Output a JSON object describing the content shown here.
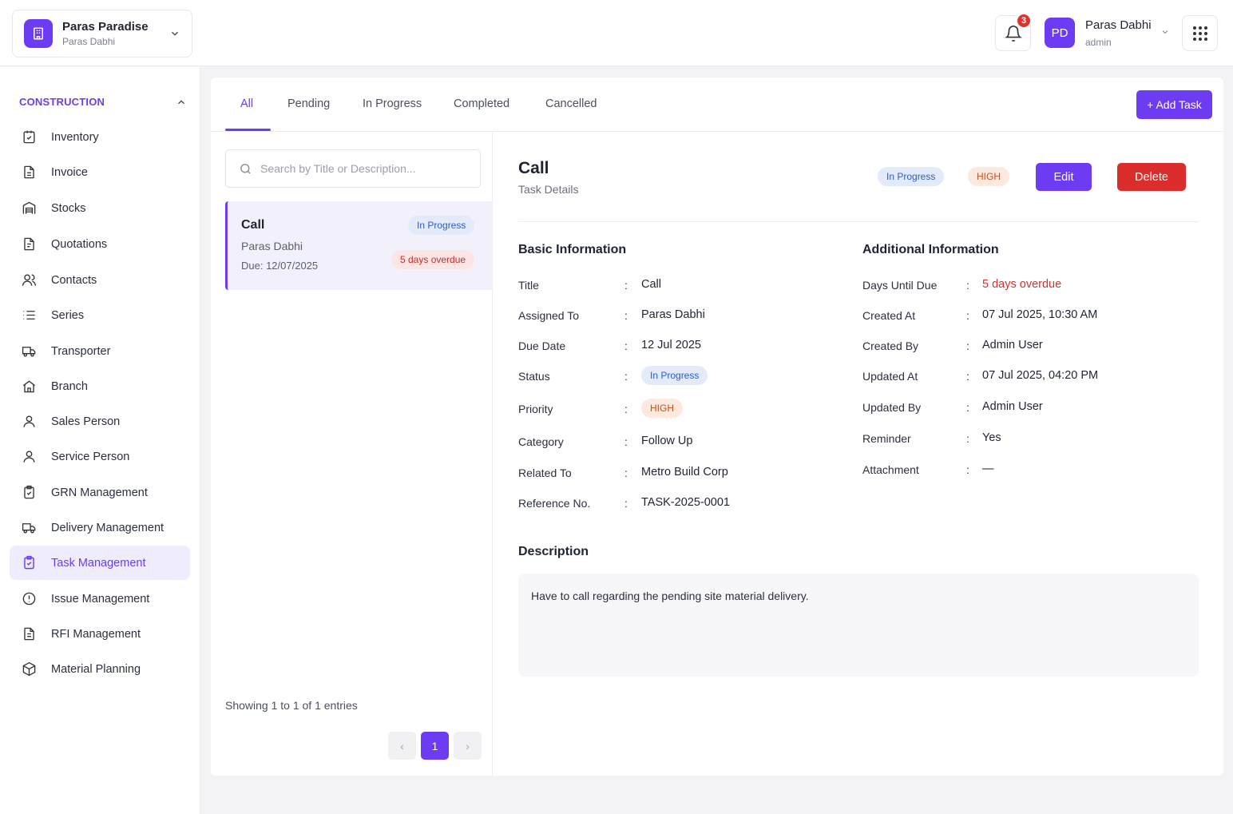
{
  "org": {
    "name": "Paras Paradise",
    "owner": "Paras Dabhi"
  },
  "notifications": {
    "count": "3"
  },
  "user": {
    "initials": "PD",
    "name": "Paras Dabhi",
    "role": "admin"
  },
  "sidebar": {
    "section": "CONSTRUCTION",
    "items": [
      {
        "label": "Inventory",
        "icon": "inventory-icon"
      },
      {
        "label": "Invoice",
        "icon": "invoice-icon"
      },
      {
        "label": "Stocks",
        "icon": "stocks-icon"
      },
      {
        "label": "Quotations",
        "icon": "quotations-icon"
      },
      {
        "label": "Contacts",
        "icon": "contacts-icon"
      },
      {
        "label": "Series",
        "icon": "series-icon"
      },
      {
        "label": "Transporter",
        "icon": "truck-icon"
      },
      {
        "label": "Branch",
        "icon": "branch-icon"
      },
      {
        "label": "Sales Person",
        "icon": "person-icon"
      },
      {
        "label": "Service Person",
        "icon": "person-icon"
      },
      {
        "label": "GRN Management",
        "icon": "clipboard-check-icon"
      },
      {
        "label": "Delivery Management",
        "icon": "truck-icon"
      },
      {
        "label": "Task Management",
        "icon": "clipboard-check-icon",
        "active": true
      },
      {
        "label": "Issue Management",
        "icon": "alert-circle-icon"
      },
      {
        "label": "RFI Management",
        "icon": "document-icon"
      },
      {
        "label": "Material Planning",
        "icon": "cube-icon"
      }
    ]
  },
  "tabs": [
    "All",
    "Pending",
    "In Progress",
    "Completed",
    "Cancelled"
  ],
  "add_task_label": "+ Add Task",
  "search": {
    "placeholder": "Search by Title or Description..."
  },
  "task_list": [
    {
      "title": "Call",
      "assignee": "Paras Dabhi",
      "due": "Due: 12/07/2025",
      "status": "In Progress",
      "overdue": "5 days overdue"
    }
  ],
  "pagination": {
    "showing": "Showing 1 to 1 of 1 entries",
    "current": "1",
    "prev": "‹",
    "next": "›"
  },
  "detail": {
    "title": "Call",
    "subtitle": "Task Details",
    "status": "In Progress",
    "priority": "HIGH",
    "edit_label": "Edit",
    "delete_label": "Delete",
    "basic_heading": "Basic Information",
    "basic": [
      {
        "label": "Title",
        "value": "Call"
      },
      {
        "label": "Assigned To",
        "value": "Paras Dabhi"
      },
      {
        "label": "Due Date",
        "value": "12 Jul 2025"
      },
      {
        "label": "Status",
        "value": "In Progress"
      },
      {
        "label": "Priority",
        "value": "HIGH"
      },
      {
        "label": "Category",
        "value": "Follow Up"
      },
      {
        "label": "Related To",
        "value": "Metro Build Corp"
      },
      {
        "label": "Reference No.",
        "value": "TASK-2025-0001"
      }
    ],
    "additional_heading": "Additional Information",
    "additional": [
      {
        "label": "Days Until Due",
        "value": "5 days overdue"
      },
      {
        "label": "Created At",
        "value": "07 Jul 2025, 10:30 AM"
      },
      {
        "label": "Created By",
        "value": "Admin User"
      },
      {
        "label": "Updated At",
        "value": "07 Jul 2025, 04:20 PM"
      },
      {
        "label": "Updated By",
        "value": "Admin User"
      },
      {
        "label": "Reminder",
        "value": "Yes"
      },
      {
        "label": "Attachment",
        "value": "—"
      }
    ],
    "description_heading": "Description",
    "description": "Have to call regarding the pending site material delivery."
  },
  "colors": {
    "accent": "#6d3cf2",
    "danger": "#dc2d2d",
    "overdue": "#d63030"
  }
}
